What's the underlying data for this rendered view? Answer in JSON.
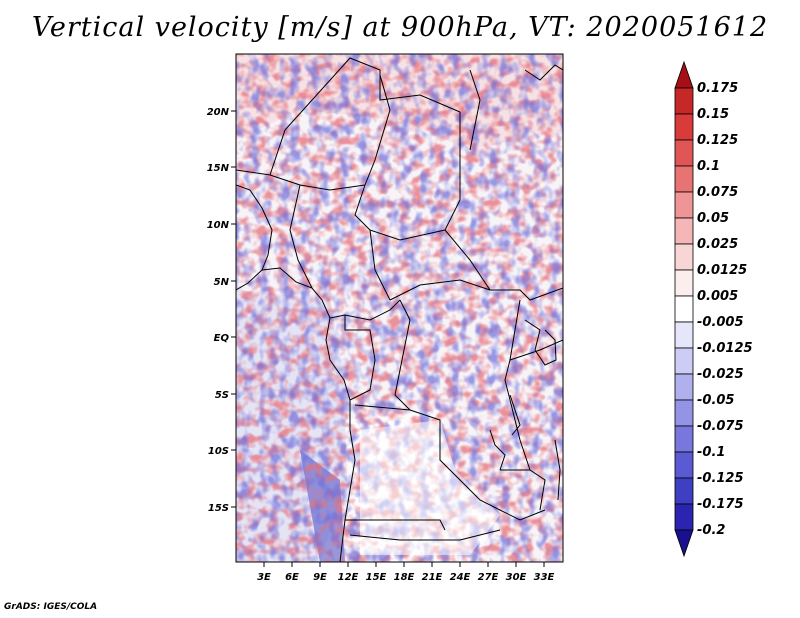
{
  "title": "Vertical velocity [m/s] at 900hPa, VT: 2020051612",
  "credit": "GrADS: IGES/COLA",
  "colors": {
    "positive_strong": "#b2182b",
    "positive_weak": "#f4a6a6",
    "neutral": "#ffffff",
    "negative_weak": "#b4b4f0",
    "negative_strong": "#2a1a9e",
    "border": "#000000"
  },
  "map": {
    "region": "Central Africa",
    "lon_range": [
      0,
      35
    ],
    "lat_range": [
      -19.5,
      24.5
    ],
    "lon_ticks": [
      "3E",
      "6E",
      "9E",
      "12E",
      "15E",
      "18E",
      "21E",
      "24E",
      "27E",
      "30E",
      "33E"
    ],
    "lat_ticks": [
      "20N",
      "15N",
      "10N",
      "5N",
      "EQ",
      "5S",
      "10S",
      "15S"
    ]
  },
  "colorbar": {
    "levels": [
      "0.175",
      "0.15",
      "0.125",
      "0.1",
      "0.075",
      "0.05",
      "0.025",
      "0.0125",
      "0.005",
      "-0.005",
      "-0.0125",
      "-0.025",
      "-0.05",
      "-0.075",
      "-0.1",
      "-0.125",
      "-0.175",
      "-0.2"
    ],
    "colors": [
      "#a50f15",
      "#c62828",
      "#d93a3a",
      "#e05555",
      "#e87373",
      "#ef9595",
      "#f4b6b6",
      "#f9d6d6",
      "#fdeeee",
      "#ffffff",
      "#e6e6fa",
      "#ccccf5",
      "#b0b0ee",
      "#9494e6",
      "#7777dd",
      "#5a5ad2",
      "#3f3fc4",
      "#2a24b0",
      "#1a108f"
    ]
  }
}
